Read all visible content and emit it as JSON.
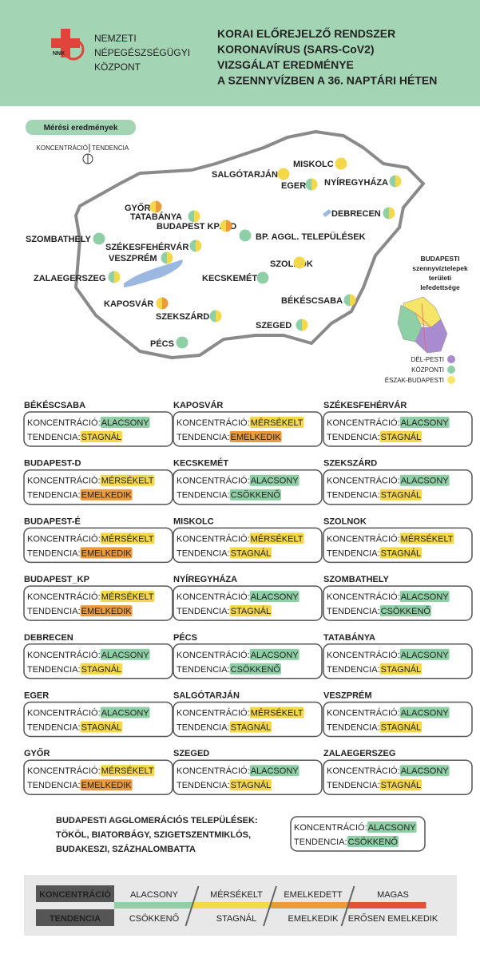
{
  "header": {
    "logo": {
      "badge": "NNK",
      "lines": [
        "NEMZETI",
        "NÉPEGÉSZSÉGÜGYI",
        "KÖZPONT"
      ]
    },
    "title": [
      "KORAI ELŐREJELZŐ RENDSZER",
      "KORONAVÍRUS (SARS-CoV2)",
      "VIZSGÁLAT EREDMÉNYE",
      "A SZENNYVÍZBEN A 36. NAPTÁRI HÉTEN"
    ]
  },
  "map": {
    "badge": "Mérési eredmények",
    "icon_labels": [
      "KONCENTRÁCIÓ",
      "TENDENCIA"
    ],
    "cities": [
      {
        "name": "MISKOLC",
        "colors": [
          "#f5d84a",
          "#f5d84a"
        ]
      },
      {
        "name": "SALGÓTARJÁN",
        "colors": [
          "#f5d84a",
          "#f5d84a"
        ]
      },
      {
        "name": "EGER",
        "colors": [
          "#8fcfa6",
          "#f5d84a"
        ]
      },
      {
        "name": "NYÍREGYHÁZA",
        "colors": [
          "#8fcfa6",
          "#f5d84a"
        ]
      },
      {
        "name": "DEBRECEN",
        "colors": [
          "#8fcfa6",
          "#f5d84a"
        ]
      },
      {
        "name": "GYŐR",
        "colors": [
          "#f5d84a",
          "#eb9a3c"
        ]
      },
      {
        "name": "TATABÁNYA",
        "colors": [
          "#8fcfa6",
          "#f5d84a"
        ]
      },
      {
        "name": "BUDAPEST KP/É/D",
        "colors": [
          "#f5d84a",
          "#eb9a3c"
        ]
      },
      {
        "name": "BP. AGGL. TELEPÜLÉSEK",
        "colors": [
          "#8fcfa6",
          "#8fcfa6"
        ]
      },
      {
        "name": "SZOMBATHELY",
        "colors": [
          "#8fcfa6",
          "#8fcfa6"
        ]
      },
      {
        "name": "SZÉKESFEHÉRVÁR",
        "colors": [
          "#8fcfa6",
          "#f5d84a"
        ]
      },
      {
        "name": "VESZPRÉM",
        "colors": [
          "#8fcfa6",
          "#f5d84a"
        ]
      },
      {
        "name": "SZOLNOK",
        "colors": [
          "#f5d84a",
          "#f5d84a"
        ]
      },
      {
        "name": "KECSKEMÉT",
        "colors": [
          "#8fcfa6",
          "#8fcfa6"
        ]
      },
      {
        "name": "ZALAEGERSZEG",
        "colors": [
          "#8fcfa6",
          "#f5d84a"
        ]
      },
      {
        "name": "BÉKÉSCSABA",
        "colors": [
          "#8fcfa6",
          "#f5d84a"
        ]
      },
      {
        "name": "KAPOSVÁR",
        "colors": [
          "#f5d84a",
          "#eb9a3c"
        ]
      },
      {
        "name": "SZEKSZÁRD",
        "colors": [
          "#8fcfa6",
          "#f5d84a"
        ]
      },
      {
        "name": "SZEGED",
        "colors": [
          "#8fcfa6",
          "#f5d84a"
        ]
      },
      {
        "name": "PÉCS",
        "colors": [
          "#8fcfa6",
          "#8fcfa6"
        ]
      }
    ],
    "budapest": {
      "title": [
        "BUDAPESTI",
        "szennyvíztelepek",
        "területi",
        "lefedettsége"
      ],
      "zones": [
        {
          "label": "DÉL-PESTI",
          "color": "#a98bd0"
        },
        {
          "label": "KÖZPONTI",
          "color": "#8fcfa6"
        },
        {
          "label": "ÉSZAK-BUDAPESTI",
          "color": "#f5e66a"
        }
      ]
    }
  },
  "card_labels": {
    "concentration": "KONCENTRÁCIÓ:",
    "trend": "TENDENCIA:"
  },
  "cards": [
    {
      "name": "BÉKÉSCSABA",
      "concentration": "ALACSONY",
      "trend": "STAGNÁL"
    },
    {
      "name": "BUDAPEST-D",
      "concentration": "MÉRSÉKELT",
      "trend": "EMELKEDIK"
    },
    {
      "name": "BUDAPEST-É",
      "concentration": "MÉRSÉKELT",
      "trend": "EMELKEDIK"
    },
    {
      "name": "BUDAPEST_KP",
      "concentration": "MÉRSÉKELT",
      "trend": "EMELKEDIK"
    },
    {
      "name": "DEBRECEN",
      "concentration": "ALACSONY",
      "trend": "STAGNÁL"
    },
    {
      "name": "EGER",
      "concentration": "ALACSONY",
      "trend": "STAGNÁL"
    },
    {
      "name": "GYŐR",
      "concentration": "MÉRSÉKELT",
      "trend": "EMELKEDIK"
    },
    {
      "name": "KAPOSVÁR",
      "concentration": "MÉRSÉKELT",
      "trend": "EMELKEDIK"
    },
    {
      "name": "KECSKEMÉT",
      "concentration": "ALACSONY",
      "trend": "CSÖKKENŐ"
    },
    {
      "name": "MISKOLC",
      "concentration": "MÉRSÉKELT",
      "trend": "STAGNÁL"
    },
    {
      "name": "NYÍREGYHÁZA",
      "concentration": "ALACSONY",
      "trend": "STAGNÁL"
    },
    {
      "name": "PÉCS",
      "concentration": "ALACSONY",
      "trend": "CSÖKKENŐ"
    },
    {
      "name": "SALGÓTARJÁN",
      "concentration": "MÉRSÉKELT",
      "trend": "STAGNÁL"
    },
    {
      "name": "SZEGED",
      "concentration": "ALACSONY",
      "trend": "STAGNÁL"
    },
    {
      "name": "SZÉKESFEHÉRVÁR",
      "concentration": "ALACSONY",
      "trend": "STAGNÁL"
    },
    {
      "name": "SZEKSZÁRD",
      "concentration": "ALACSONY",
      "trend": "STAGNÁL"
    },
    {
      "name": "SZOLNOK",
      "concentration": "MÉRSÉKELT",
      "trend": "STAGNÁL"
    },
    {
      "name": "SZOMBATHELY",
      "concentration": "ALACSONY",
      "trend": "CSÖKKENŐ"
    },
    {
      "name": "TATABÁNYA",
      "concentration": "ALACSONY",
      "trend": "STAGNÁL"
    },
    {
      "name": "VESZPRÉM",
      "concentration": "ALACSONY",
      "trend": "STAGNÁL"
    },
    {
      "name": "ZALAEGERSZEG",
      "concentration": "ALACSONY",
      "trend": "STAGNÁL"
    }
  ],
  "agglomeration": {
    "title": [
      "BUDAPESTI AGGLOMERÁCIÓS TELEPÜLÉSEK:",
      "TÖKÖL, BIATORBÁGY, SZIGETSZENTMIKLÓS,",
      "BUDAKESZI, SZÁZHALOMBATTA"
    ],
    "concentration": "ALACSONY",
    "trend": "CSÖKKENŐ"
  },
  "legend": {
    "concentration": {
      "title": "KONCENTRÁCIÓ",
      "levels": [
        {
          "label": "ALACSONY",
          "color": "#8fcfa6"
        },
        {
          "label": "MÉRSÉKELT",
          "color": "#f5d84a"
        },
        {
          "label": "EMELKEDETT",
          "color": "#eb9a3c"
        },
        {
          "label": "MAGAS",
          "color": "#e0523a"
        }
      ]
    },
    "trend": {
      "title": "TENDENCIA",
      "levels": [
        {
          "label": "CSÖKKENŐ",
          "color": "#8fcfa6"
        },
        {
          "label": "STAGNÁL",
          "color": "#f5d84a"
        },
        {
          "label": "EMELKEDIK",
          "color": "#eb9a3c"
        },
        {
          "label": "ERŐSEN EMELKEDIK",
          "color": "#e0523a"
        }
      ]
    }
  }
}
